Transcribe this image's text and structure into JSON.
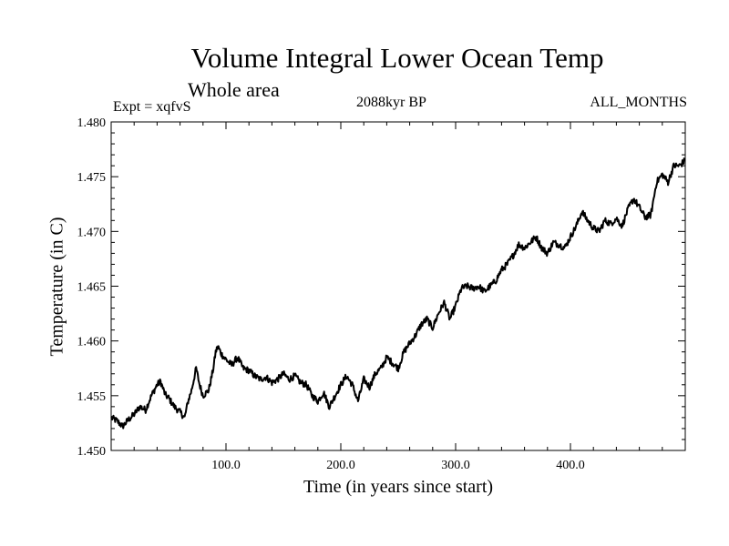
{
  "chart_data": {
    "type": "line",
    "title": "Volume Integral Lower Ocean Temp",
    "subtitle": "Whole area",
    "experiment_label": "Expt = xqfvS",
    "epoch_label": "2088kyr BP",
    "months_label": "ALL_MONTHS",
    "xlabel": "Time (in years since start)",
    "ylabel": "Temperature (in C)",
    "xlim": [
      0,
      500
    ],
    "ylim": [
      1.45,
      1.48
    ],
    "x_ticks": [
      100,
      200,
      300,
      400
    ],
    "x_tick_labels": [
      "100.0",
      "200.0",
      "300.0",
      "400.0"
    ],
    "y_ticks": [
      1.45,
      1.455,
      1.46,
      1.465,
      1.47,
      1.475,
      1.48
    ],
    "y_tick_labels": [
      "1.450",
      "1.455",
      "1.460",
      "1.465",
      "1.470",
      "1.475",
      "1.480"
    ],
    "grid": false,
    "series": [
      {
        "name": "Volume Integral Lower Ocean Temp",
        "color": "#000000",
        "x": [
          0,
          5,
          10,
          15,
          20,
          25,
          30,
          35,
          40,
          43,
          47,
          50,
          55,
          60,
          64,
          67,
          70,
          74,
          77,
          80,
          85,
          89,
          91,
          93,
          96,
          100,
          105,
          110,
          115,
          120,
          125,
          130,
          135,
          140,
          145,
          150,
          155,
          160,
          165,
          170,
          175,
          180,
          185,
          190,
          195,
          200,
          205,
          210,
          215,
          220,
          225,
          230,
          235,
          240,
          245,
          250,
          255,
          260,
          265,
          270,
          275,
          280,
          285,
          290,
          295,
          300,
          305,
          310,
          315,
          320,
          325,
          330,
          335,
          340,
          345,
          350,
          355,
          360,
          365,
          370,
          375,
          380,
          385,
          390,
          395,
          400,
          405,
          410,
          415,
          420,
          425,
          430,
          435,
          440,
          445,
          450,
          455,
          460,
          465,
          470,
          475,
          480,
          485,
          490,
          495,
          500
        ],
        "y": [
          1.453,
          1.4527,
          1.4522,
          1.4528,
          1.4533,
          1.454,
          1.4537,
          1.455,
          1.456,
          1.4563,
          1.4551,
          1.4548,
          1.454,
          1.4535,
          1.453,
          1.4545,
          1.4555,
          1.4575,
          1.456,
          1.455,
          1.4555,
          1.4575,
          1.459,
          1.4595,
          1.4588,
          1.4583,
          1.4578,
          1.4585,
          1.4575,
          1.4573,
          1.4568,
          1.4565,
          1.4567,
          1.4562,
          1.4565,
          1.457,
          1.4565,
          1.4568,
          1.4562,
          1.456,
          1.455,
          1.4545,
          1.4553,
          1.454,
          1.455,
          1.456,
          1.4568,
          1.456,
          1.4545,
          1.4565,
          1.4558,
          1.457,
          1.4575,
          1.4585,
          1.458,
          1.4575,
          1.459,
          1.4598,
          1.4605,
          1.4615,
          1.462,
          1.4612,
          1.4625,
          1.4635,
          1.462,
          1.4632,
          1.4648,
          1.465,
          1.4648,
          1.465,
          1.4645,
          1.465,
          1.4655,
          1.4665,
          1.467,
          1.4678,
          1.4688,
          1.4685,
          1.469,
          1.4695,
          1.4685,
          1.468,
          1.469,
          1.4688,
          1.4685,
          1.4695,
          1.4705,
          1.4718,
          1.471,
          1.4703,
          1.47,
          1.471,
          1.4707,
          1.4712,
          1.4705,
          1.472,
          1.473,
          1.4722,
          1.4713,
          1.4715,
          1.4745,
          1.4752,
          1.4745,
          1.476,
          1.476,
          1.4765
        ]
      }
    ]
  }
}
